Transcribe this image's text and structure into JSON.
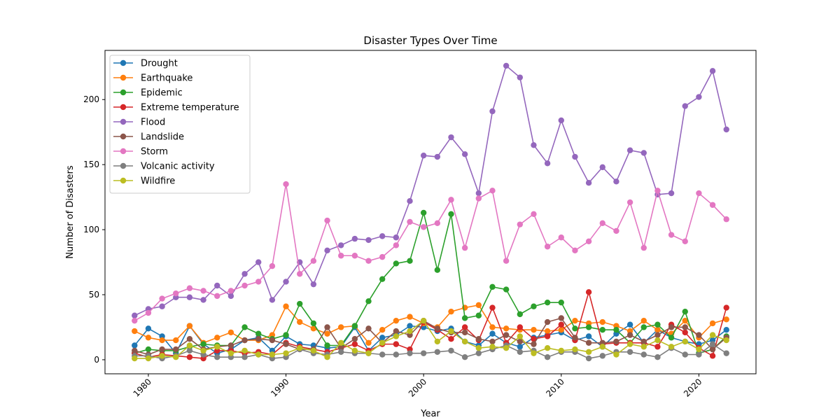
{
  "chart_data": {
    "type": "line",
    "title": "Disaster Types Over Time",
    "xlabel": "Year",
    "ylabel": "Number of Disasters",
    "xlim": [
      1976.85,
      2024.15
    ],
    "ylim": [
      -10.8,
      237.8
    ],
    "x_ticks": [
      1980,
      1990,
      2000,
      2010,
      2020
    ],
    "y_ticks": [
      0,
      50,
      100,
      150,
      200
    ],
    "grid": false,
    "legend_position": "upper-left",
    "x": [
      1979,
      1980,
      1981,
      1982,
      1983,
      1984,
      1985,
      1986,
      1987,
      1988,
      1989,
      1990,
      1991,
      1992,
      1993,
      1994,
      1995,
      1996,
      1997,
      1998,
      1999,
      2000,
      2001,
      2002,
      2003,
      2004,
      2005,
      2006,
      2007,
      2008,
      2009,
      2010,
      2011,
      2012,
      2013,
      2014,
      2015,
      2016,
      2017,
      2018,
      2019,
      2020,
      2021,
      2022
    ],
    "series": [
      {
        "name": "Drought",
        "color": "#1f77b4",
        "values": [
          11,
          24,
          18,
          5,
          26,
          12,
          5,
          8,
          15,
          17,
          7,
          18,
          12,
          11,
          9,
          10,
          25,
          7,
          17,
          19,
          26,
          25,
          22,
          24,
          14,
          11,
          20,
          13,
          10,
          17,
          19,
          21,
          15,
          18,
          10,
          20,
          27,
          13,
          23,
          17,
          14,
          12,
          15,
          23
        ]
      },
      {
        "name": "Earthquake",
        "color": "#ff7f0e",
        "values": [
          22,
          17,
          15,
          15,
          26,
          13,
          17,
          21,
          15,
          15,
          19,
          41,
          29,
          24,
          20,
          25,
          26,
          13,
          23,
          30,
          33,
          28,
          25,
          37,
          40,
          42,
          25,
          24,
          23,
          23,
          22,
          23,
          30,
          28,
          29,
          26,
          22,
          30,
          23,
          20,
          30,
          17,
          28,
          31
        ]
      },
      {
        "name": "Epidemic",
        "color": "#2ca02c",
        "values": [
          5,
          8,
          7,
          7,
          10,
          12,
          11,
          11,
          25,
          20,
          16,
          19,
          43,
          28,
          11,
          11,
          26,
          45,
          62,
          74,
          76,
          113,
          69,
          112,
          32,
          34,
          56,
          54,
          35,
          41,
          44,
          44,
          24,
          25,
          23,
          23,
          13,
          25,
          27,
          17,
          37,
          5,
          8,
          18
        ]
      },
      {
        "name": "Extreme temperature",
        "color": "#d62728",
        "values": [
          5,
          2,
          4,
          3,
          2,
          1,
          7,
          7,
          5,
          6,
          4,
          13,
          10,
          8,
          6,
          9,
          12,
          7,
          12,
          12,
          8,
          29,
          23,
          16,
          25,
          15,
          40,
          13,
          25,
          16,
          18,
          27,
          15,
          52,
          12,
          13,
          13,
          13,
          10,
          27,
          21,
          9,
          3,
          40
        ]
      },
      {
        "name": "Flood",
        "color": "#9467bd",
        "values": [
          34,
          39,
          41,
          48,
          48,
          46,
          57,
          49,
          66,
          75,
          46,
          60,
          75,
          58,
          84,
          88,
          93,
          92,
          95,
          94,
          122,
          157,
          156,
          171,
          158,
          128,
          191,
          226,
          217,
          165,
          151,
          184,
          156,
          136,
          148,
          137,
          161,
          159,
          127,
          128,
          195,
          202,
          222,
          177
        ]
      },
      {
        "name": "Landslide",
        "color": "#8c564b",
        "values": [
          7,
          4,
          8,
          8,
          16,
          8,
          10,
          11,
          15,
          16,
          15,
          12,
          8,
          8,
          25,
          9,
          16,
          24,
          13,
          22,
          19,
          30,
          24,
          21,
          21,
          16,
          14,
          19,
          14,
          12,
          29,
          32,
          17,
          13,
          13,
          14,
          19,
          14,
          19,
          25,
          25,
          19,
          8,
          17
        ]
      },
      {
        "name": "Storm",
        "color": "#e377c2",
        "values": [
          30,
          36,
          47,
          51,
          55,
          53,
          49,
          53,
          57,
          60,
          72,
          135,
          66,
          76,
          107,
          80,
          80,
          76,
          79,
          88,
          106,
          102,
          105,
          123,
          86,
          124,
          130,
          76,
          104,
          112,
          87,
          94,
          84,
          91,
          105,
          99,
          121,
          86,
          130,
          96,
          91,
          128,
          119,
          108
        ]
      },
      {
        "name": "Volcanic activity",
        "color": "#7f7f7f",
        "values": [
          3,
          3,
          1,
          3,
          7,
          4,
          2,
          2,
          2,
          4,
          1,
          2,
          8,
          5,
          4,
          6,
          5,
          5,
          4,
          4,
          5,
          5,
          6,
          7,
          2,
          5,
          8,
          11,
          6,
          7,
          2,
          6,
          6,
          1,
          3,
          6,
          6,
          4,
          2,
          9,
          4,
          4,
          12,
          5
        ]
      },
      {
        "name": "Wildfire",
        "color": "#bcbd22",
        "values": [
          1,
          1,
          3,
          2,
          11,
          7,
          10,
          5,
          7,
          4,
          4,
          5,
          9,
          7,
          2,
          13,
          7,
          5,
          13,
          18,
          22,
          30,
          14,
          22,
          14,
          9,
          10,
          9,
          18,
          5,
          9,
          7,
          8,
          6,
          10,
          4,
          12,
          10,
          15,
          10,
          14,
          8,
          19,
          15
        ]
      }
    ]
  }
}
